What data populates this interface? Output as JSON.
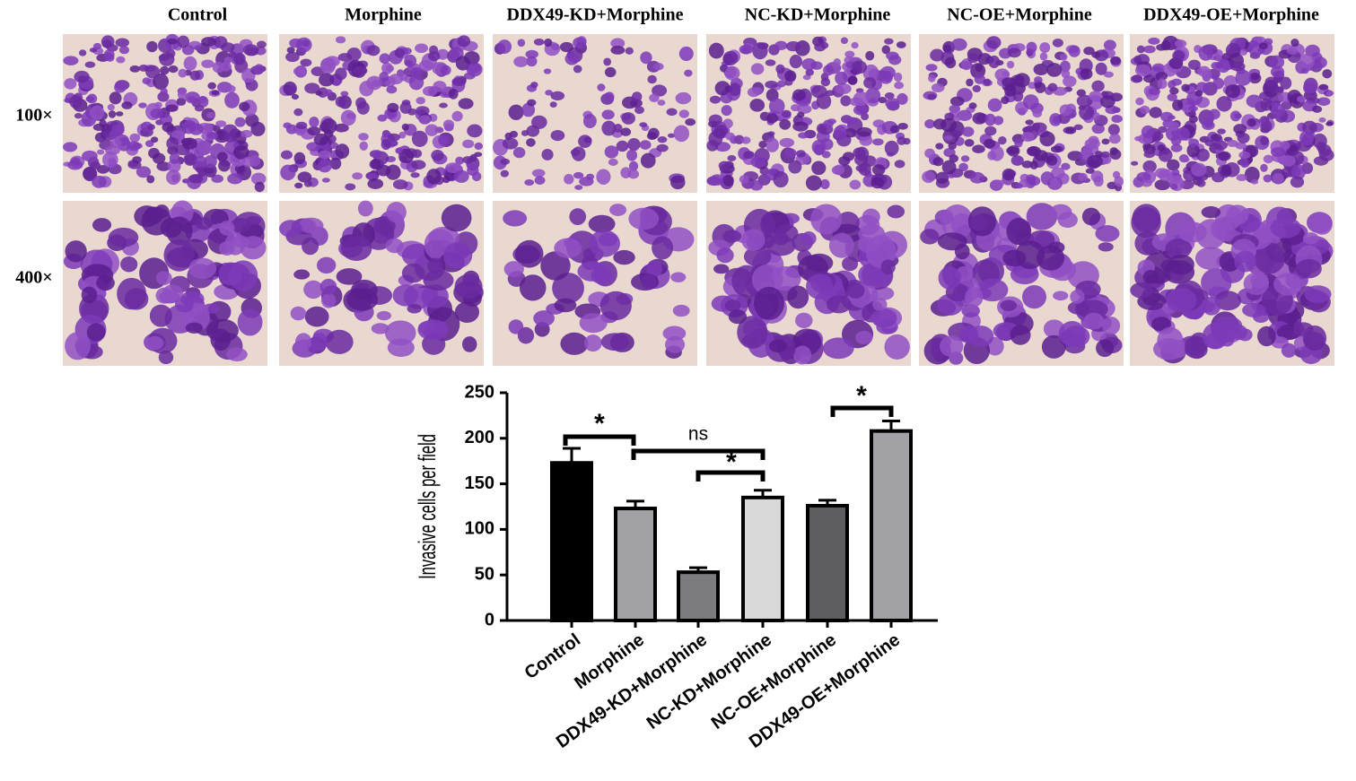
{
  "figure": {
    "column_labels": [
      "Control",
      "Morphine",
      "DDX49-KD+Morphine",
      "NC-KD+Morphine",
      "NC-OE+Morphine",
      "DDX49-OE+Morphine"
    ],
    "row_labels": [
      "100×",
      "400×"
    ]
  },
  "chart_data": {
    "type": "bar",
    "y_label": "Invasive cells per field",
    "categories": [
      "Control",
      "Morphine",
      "DDX49-KD+Morphine",
      "NC-KD+Morphine",
      "NC-OE+Morphine",
      "DDX49-OE+Morphine"
    ],
    "values": [
      173,
      123,
      53,
      135,
      126,
      208
    ],
    "errors": [
      16,
      8,
      5,
      8,
      6,
      11
    ],
    "colors": [
      "#000000",
      "#a2a2a6",
      "#7c7c7e",
      "#d9d9d9",
      "#5e5e60",
      "#a2a2a6"
    ],
    "ylim": [
      0,
      250
    ],
    "yticks": [
      0,
      50,
      100,
      150,
      200,
      250
    ],
    "annotations": [
      "*",
      "ns",
      "*",
      "*"
    ]
  }
}
